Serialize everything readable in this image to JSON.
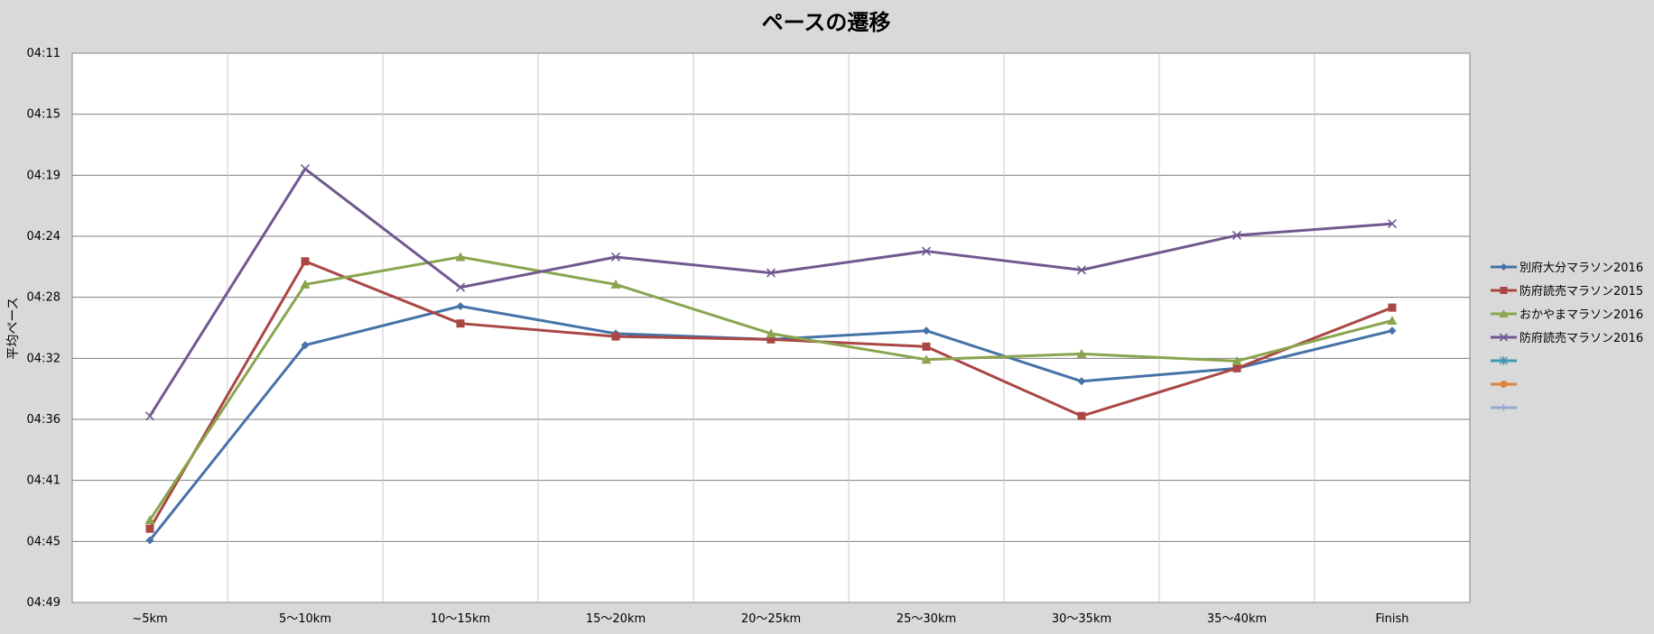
{
  "chart_data": {
    "type": "line",
    "title": "ペースの遷移",
    "ylabel": "平均ペース",
    "xlabel": "",
    "categories": [
      "~5km",
      "5～10km",
      "10～15km",
      "15～20km",
      "20～25km",
      "25～30km",
      "30～35km",
      "35～40km",
      "Finish"
    ],
    "y_ticks": [
      "04:11",
      "04:15",
      "04:19",
      "04:24",
      "04:28",
      "04:32",
      "04:36",
      "04:41",
      "04:45",
      "04:49"
    ],
    "y_unit": "seconds per km (pace, mm:ss)",
    "ylim": [
      251.1,
      289.1
    ],
    "y_inverted": true,
    "grid": true,
    "legend_position": "right",
    "series": [
      {
        "name": "別府大分マラソン2016",
        "color": "#4572a7",
        "marker": "diamond",
        "values": [
          284.8,
          271.3,
          268.6,
          270.5,
          270.9,
          270.3,
          273.8,
          272.9,
          270.3
        ]
      },
      {
        "name": "防府読売マラソン2015",
        "color": "#aa4643",
        "marker": "square",
        "values": [
          284.0,
          265.5,
          269.8,
          270.7,
          270.9,
          271.4,
          276.2,
          272.9,
          268.7
        ]
      },
      {
        "name": "おかやまマラソン2016",
        "color": "#89a54e",
        "marker": "triangle",
        "values": [
          283.4,
          267.1,
          265.2,
          267.1,
          270.5,
          272.3,
          271.9,
          272.4,
          269.6
        ]
      },
      {
        "name": "防府読売マラソン2016",
        "color": "#71588f",
        "marker": "x",
        "values": [
          276.2,
          259.1,
          267.3,
          265.2,
          266.3,
          264.8,
          266.1,
          263.7,
          262.9
        ]
      }
    ],
    "extra_legend": [
      {
        "color": "#4198af",
        "marker": "star"
      },
      {
        "color": "#db843d",
        "marker": "circle"
      },
      {
        "color": "#93a9cf",
        "marker": "plus"
      }
    ]
  }
}
